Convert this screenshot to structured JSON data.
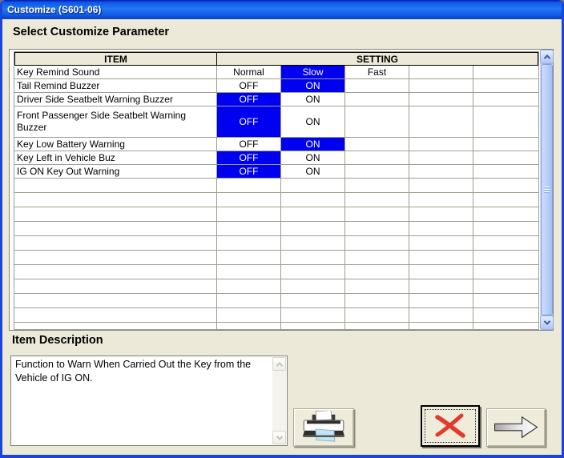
{
  "window": {
    "title": "Customize (S601-06)"
  },
  "heading": "Select Customize Parameter",
  "table": {
    "columns": {
      "item": "ITEM",
      "setting": "SETTING"
    },
    "rows": [
      {
        "item": "Key Remind Sound",
        "options": [
          "Normal",
          "Slow",
          "Fast",
          "",
          ""
        ],
        "selected": 1,
        "tall": false
      },
      {
        "item": "Tail Remind Buzzer",
        "options": [
          "OFF",
          "ON",
          "",
          "",
          ""
        ],
        "selected": 1,
        "tall": false
      },
      {
        "item": "Driver Side Seatbelt Warning Buzzer",
        "options": [
          "OFF",
          "ON",
          "",
          "",
          ""
        ],
        "selected": 0,
        "tall": false
      },
      {
        "item": "Front Passenger Side Seatbelt Warning Buzzer",
        "options": [
          "OFF",
          "ON",
          "",
          "",
          ""
        ],
        "selected": 0,
        "tall": true
      },
      {
        "item": "Key Low Battery Warning",
        "options": [
          "OFF",
          "ON",
          "",
          "",
          ""
        ],
        "selected": 1,
        "tall": false
      },
      {
        "item": "Key Left in Vehicle Buz",
        "options": [
          "OFF",
          "ON",
          "",
          "",
          ""
        ],
        "selected": 0,
        "tall": false
      },
      {
        "item": "IG ON Key Out Warning",
        "options": [
          "OFF",
          "ON",
          "",
          "",
          ""
        ],
        "selected": 0,
        "tall": false
      }
    ],
    "empty_rows": 11
  },
  "description": {
    "heading": "Item Description",
    "text": "Function to Warn When Carried Out the Key from the Vehicle of IG ON."
  },
  "buttons": {
    "print": "print",
    "cancel": "cancel",
    "next": "next"
  },
  "colors": {
    "selected_bg": "#0000F0",
    "selected_text": "#FFFFFF",
    "titlebar_blue": "#0C59E8",
    "window_border": "#1746D8",
    "dialog_bg": "#ECE9D8",
    "cancel_x_red": "#E23B2E"
  }
}
